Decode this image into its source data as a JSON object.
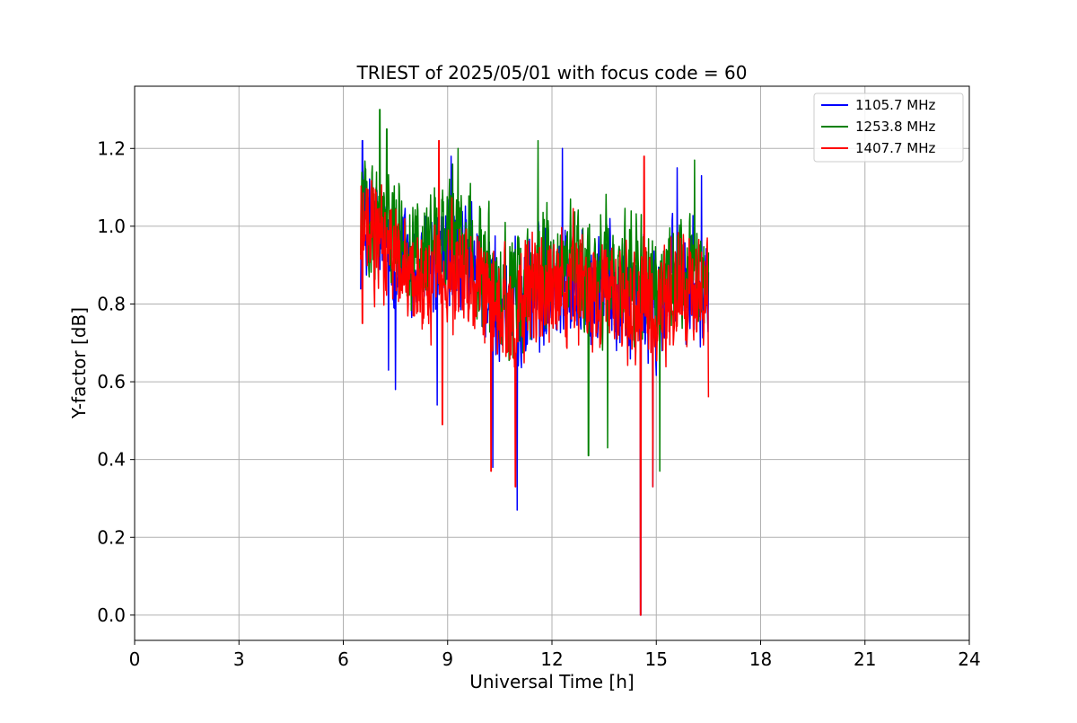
{
  "chart_data": {
    "type": "line",
    "title": "TRIEST of 2025/05/01 with focus code = 60",
    "xlabel": "Universal Time [h]",
    "ylabel": "Y-factor [dB]",
    "xlim": [
      0,
      24
    ],
    "ylim": [
      -0.065,
      1.36
    ],
    "xticks": [
      0,
      3,
      6,
      9,
      12,
      15,
      18,
      21,
      24
    ],
    "yticks": [
      0.0,
      0.2,
      0.4,
      0.6,
      0.8,
      1.0,
      1.2
    ],
    "xtick_labels": [
      "0",
      "3",
      "6",
      "9",
      "12",
      "15",
      "18",
      "21",
      "24"
    ],
    "ytick_labels": [
      "0.0",
      "0.2",
      "0.4",
      "0.6",
      "0.8",
      "1.0",
      "1.2"
    ],
    "grid": true,
    "legend_position": "top-right",
    "x_range_of_data": [
      6.5,
      16.5
    ],
    "series": [
      {
        "name": "1105.7 MHz",
        "color": "#0000ff",
        "mean_envelope": [
          [
            6.5,
            1.0
          ],
          [
            7.0,
            0.98
          ],
          [
            7.5,
            0.92
          ],
          [
            8.0,
            0.9
          ],
          [
            8.5,
            0.88
          ],
          [
            9.0,
            0.94
          ],
          [
            9.5,
            0.9
          ],
          [
            10.0,
            0.85
          ],
          [
            10.5,
            0.8
          ],
          [
            11.0,
            0.78
          ],
          [
            11.5,
            0.84
          ],
          [
            12.0,
            0.86
          ],
          [
            12.5,
            0.88
          ],
          [
            13.0,
            0.82
          ],
          [
            13.5,
            0.86
          ],
          [
            14.0,
            0.84
          ],
          [
            14.5,
            0.82
          ],
          [
            15.0,
            0.78
          ],
          [
            15.5,
            0.84
          ],
          [
            16.0,
            0.86
          ],
          [
            16.5,
            0.88
          ]
        ],
        "spikes": [
          [
            6.55,
            1.22
          ],
          [
            7.3,
            0.63
          ],
          [
            7.5,
            0.58
          ],
          [
            8.7,
            0.54
          ],
          [
            9.1,
            1.18
          ],
          [
            10.3,
            0.38
          ],
          [
            11.0,
            0.27
          ],
          [
            12.3,
            1.2
          ],
          [
            14.55,
            0.0
          ],
          [
            14.9,
            0.33
          ],
          [
            15.6,
            1.15
          ],
          [
            16.3,
            1.13
          ]
        ]
      },
      {
        "name": "1253.8 MHz",
        "color": "#008000",
        "mean_envelope": [
          [
            6.5,
            1.04
          ],
          [
            7.0,
            1.05
          ],
          [
            7.5,
            0.98
          ],
          [
            8.0,
            0.94
          ],
          [
            8.5,
            0.9
          ],
          [
            9.0,
            0.98
          ],
          [
            9.5,
            0.94
          ],
          [
            10.0,
            0.88
          ],
          [
            10.5,
            0.82
          ],
          [
            11.0,
            0.82
          ],
          [
            11.5,
            0.88
          ],
          [
            12.0,
            0.9
          ],
          [
            12.5,
            0.9
          ],
          [
            13.0,
            0.86
          ],
          [
            13.5,
            0.9
          ],
          [
            14.0,
            0.88
          ],
          [
            14.5,
            0.86
          ],
          [
            15.0,
            0.82
          ],
          [
            15.5,
            0.88
          ],
          [
            16.0,
            0.9
          ],
          [
            16.5,
            0.9
          ]
        ],
        "spikes": [
          [
            7.05,
            1.3
          ],
          [
            7.25,
            1.25
          ],
          [
            9.3,
            1.2
          ],
          [
            11.6,
            1.22
          ],
          [
            13.05,
            0.41
          ],
          [
            13.6,
            0.43
          ],
          [
            15.1,
            0.37
          ],
          [
            16.1,
            1.17
          ]
        ]
      },
      {
        "name": "1407.7 MHz",
        "color": "#ff0000",
        "mean_envelope": [
          [
            6.5,
            0.98
          ],
          [
            7.0,
            0.96
          ],
          [
            7.5,
            0.9
          ],
          [
            8.0,
            0.88
          ],
          [
            8.5,
            0.86
          ],
          [
            9.0,
            0.9
          ],
          [
            9.5,
            0.88
          ],
          [
            10.0,
            0.82
          ],
          [
            10.5,
            0.78
          ],
          [
            11.0,
            0.78
          ],
          [
            11.5,
            0.82
          ],
          [
            12.0,
            0.84
          ],
          [
            12.5,
            0.86
          ],
          [
            13.0,
            0.8
          ],
          [
            13.5,
            0.84
          ],
          [
            14.0,
            0.82
          ],
          [
            14.5,
            0.8
          ],
          [
            15.0,
            0.76
          ],
          [
            15.5,
            0.82
          ],
          [
            16.0,
            0.84
          ],
          [
            16.5,
            0.84
          ]
        ],
        "spikes": [
          [
            6.55,
            0.75
          ],
          [
            8.75,
            1.22
          ],
          [
            8.85,
            0.49
          ],
          [
            10.25,
            0.37
          ],
          [
            10.95,
            0.33
          ],
          [
            14.55,
            0.0
          ],
          [
            14.65,
            1.18
          ],
          [
            14.9,
            0.33
          ],
          [
            16.5,
            0.56
          ]
        ]
      }
    ]
  }
}
